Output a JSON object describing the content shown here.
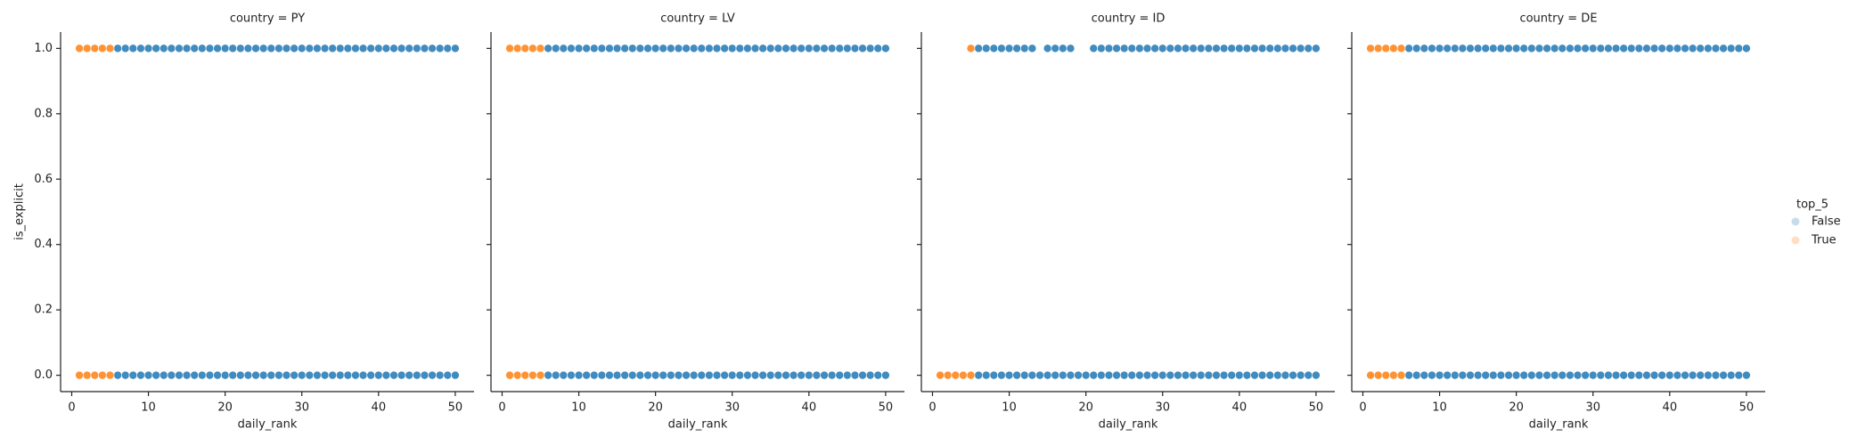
{
  "chart_data": [
    {
      "type": "scatter",
      "title": "country = PY",
      "x_label": "daily_rank",
      "y_label": "is_explicit",
      "legend_title": "top_5",
      "xlim": [
        -1.45,
        52.45
      ],
      "ylim": [
        -0.05,
        1.05
      ],
      "xticks": [
        0,
        10,
        20,
        30,
        40,
        50
      ],
      "yticks": [
        {
          "value": 0,
          "label": "0.0"
        },
        {
          "value": 0.2,
          "label": "0.2"
        },
        {
          "value": 0.4,
          "label": "0.4"
        },
        {
          "value": 0.6,
          "label": "0.6"
        },
        {
          "value": 0.8,
          "label": "0.8"
        },
        {
          "value": 1,
          "label": "1.0"
        }
      ],
      "series": [
        {
          "name": "False",
          "color": "#1f77b4",
          "x": [
            6,
            7,
            8,
            9,
            10,
            11,
            12,
            13,
            14,
            15,
            16,
            17,
            18,
            19,
            20,
            21,
            22,
            23,
            24,
            25,
            26,
            27,
            28,
            29,
            30,
            31,
            32,
            33,
            34,
            35,
            36,
            37,
            38,
            39,
            40,
            41,
            42,
            43,
            44,
            45,
            46,
            47,
            48,
            49,
            50,
            6,
            7,
            8,
            9,
            10,
            11,
            12,
            13,
            14,
            15,
            16,
            17,
            18,
            19,
            20,
            21,
            22,
            23,
            24,
            25,
            26,
            27,
            28,
            29,
            30,
            31,
            32,
            33,
            34,
            35,
            36,
            37,
            38,
            39,
            40,
            41,
            42,
            43,
            44,
            45,
            46,
            47,
            48,
            49,
            50
          ],
          "values": [
            1,
            1,
            1,
            1,
            1,
            1,
            1,
            1,
            1,
            1,
            1,
            1,
            1,
            1,
            1,
            1,
            1,
            1,
            1,
            1,
            1,
            1,
            1,
            1,
            1,
            1,
            1,
            1,
            1,
            1,
            1,
            1,
            1,
            1,
            1,
            1,
            1,
            1,
            1,
            1,
            1,
            1,
            1,
            1,
            1,
            0,
            0,
            0,
            0,
            0,
            0,
            0,
            0,
            0,
            0,
            0,
            0,
            0,
            0,
            0,
            0,
            0,
            0,
            0,
            0,
            0,
            0,
            0,
            0,
            0,
            0,
            0,
            0,
            0,
            0,
            0,
            0,
            0,
            0,
            0,
            0,
            0,
            0,
            0,
            0,
            0,
            0,
            0,
            0,
            0
          ]
        },
        {
          "name": "True",
          "color": "#ff7f0e",
          "x": [
            1,
            2,
            3,
            4,
            5,
            1,
            2,
            3,
            4,
            5
          ],
          "values": [
            1,
            1,
            1,
            1,
            1,
            0,
            0,
            0,
            0,
            0
          ]
        }
      ]
    },
    {
      "type": "scatter",
      "title": "country = LV",
      "x_label": "daily_rank",
      "xlim": [
        -1.45,
        52.45
      ],
      "ylim": [
        -0.05,
        1.05
      ],
      "xticks": [
        0,
        10,
        20,
        30,
        40,
        50
      ],
      "series": [
        {
          "name": "False",
          "color": "#1f77b4",
          "x": [
            6,
            7,
            8,
            9,
            10,
            11,
            12,
            13,
            14,
            15,
            16,
            17,
            18,
            19,
            20,
            21,
            22,
            23,
            24,
            25,
            26,
            27,
            28,
            29,
            30,
            31,
            32,
            33,
            34,
            35,
            36,
            37,
            38,
            39,
            40,
            41,
            42,
            43,
            44,
            45,
            46,
            47,
            48,
            49,
            50,
            6,
            7,
            8,
            9,
            10,
            11,
            12,
            13,
            14,
            15,
            16,
            17,
            18,
            19,
            20,
            21,
            22,
            23,
            24,
            25,
            26,
            27,
            28,
            29,
            30,
            31,
            32,
            33,
            34,
            35,
            36,
            37,
            38,
            39,
            40,
            41,
            42,
            43,
            44,
            45,
            46,
            47,
            48,
            49,
            50
          ],
          "values": [
            1,
            1,
            1,
            1,
            1,
            1,
            1,
            1,
            1,
            1,
            1,
            1,
            1,
            1,
            1,
            1,
            1,
            1,
            1,
            1,
            1,
            1,
            1,
            1,
            1,
            1,
            1,
            1,
            1,
            1,
            1,
            1,
            1,
            1,
            1,
            1,
            1,
            1,
            1,
            1,
            1,
            1,
            1,
            1,
            1,
            0,
            0,
            0,
            0,
            0,
            0,
            0,
            0,
            0,
            0,
            0,
            0,
            0,
            0,
            0,
            0,
            0,
            0,
            0,
            0,
            0,
            0,
            0,
            0,
            0,
            0,
            0,
            0,
            0,
            0,
            0,
            0,
            0,
            0,
            0,
            0,
            0,
            0,
            0,
            0,
            0,
            0,
            0,
            0,
            0
          ]
        },
        {
          "name": "True",
          "color": "#ff7f0e",
          "x": [
            1,
            2,
            3,
            4,
            5,
            1,
            2,
            3,
            4,
            5
          ],
          "values": [
            1,
            1,
            1,
            1,
            1,
            0,
            0,
            0,
            0,
            0
          ]
        }
      ]
    },
    {
      "type": "scatter",
      "title": "country = ID",
      "x_label": "daily_rank",
      "xlim": [
        -1.45,
        52.45
      ],
      "ylim": [
        -0.05,
        1.05
      ],
      "xticks": [
        0,
        10,
        20,
        30,
        40,
        50
      ],
      "series": [
        {
          "name": "False",
          "color": "#1f77b4",
          "x": [
            6,
            7,
            8,
            9,
            10,
            11,
            12,
            13,
            15,
            16,
            17,
            18,
            21,
            22,
            23,
            24,
            25,
            26,
            27,
            28,
            29,
            30,
            31,
            32,
            33,
            34,
            35,
            36,
            37,
            38,
            39,
            40,
            41,
            42,
            43,
            44,
            45,
            46,
            47,
            48,
            49,
            50,
            6,
            7,
            8,
            9,
            10,
            11,
            12,
            13,
            14,
            15,
            16,
            17,
            18,
            19,
            20,
            21,
            22,
            23,
            24,
            25,
            26,
            27,
            28,
            29,
            30,
            31,
            32,
            33,
            34,
            35,
            36,
            37,
            38,
            39,
            40,
            41,
            42,
            43,
            44,
            45,
            46,
            47,
            48,
            49,
            50
          ],
          "values": [
            1,
            1,
            1,
            1,
            1,
            1,
            1,
            1,
            1,
            1,
            1,
            1,
            1,
            1,
            1,
            1,
            1,
            1,
            1,
            1,
            1,
            1,
            1,
            1,
            1,
            1,
            1,
            1,
            1,
            1,
            1,
            1,
            1,
            1,
            1,
            1,
            1,
            1,
            1,
            1,
            1,
            1,
            0,
            0,
            0,
            0,
            0,
            0,
            0,
            0,
            0,
            0,
            0,
            0,
            0,
            0,
            0,
            0,
            0,
            0,
            0,
            0,
            0,
            0,
            0,
            0,
            0,
            0,
            0,
            0,
            0,
            0,
            0,
            0,
            0,
            0,
            0,
            0,
            0,
            0,
            0,
            0,
            0,
            0,
            0,
            0,
            0
          ]
        },
        {
          "name": "True",
          "color": "#ff7f0e",
          "x": [
            5,
            1,
            2,
            3,
            4,
            5
          ],
          "values": [
            1,
            0,
            0,
            0,
            0,
            0
          ]
        }
      ]
    },
    {
      "type": "scatter",
      "title": "country = DE",
      "x_label": "daily_rank",
      "xlim": [
        -1.45,
        52.45
      ],
      "ylim": [
        -0.05,
        1.05
      ],
      "xticks": [
        0,
        10,
        20,
        30,
        40,
        50
      ],
      "series": [
        {
          "name": "False",
          "color": "#1f77b4",
          "x": [
            6,
            7,
            8,
            9,
            10,
            11,
            12,
            13,
            14,
            15,
            16,
            17,
            18,
            19,
            20,
            21,
            22,
            23,
            24,
            25,
            26,
            27,
            28,
            29,
            30,
            31,
            32,
            33,
            34,
            35,
            36,
            37,
            38,
            39,
            40,
            41,
            42,
            43,
            44,
            45,
            46,
            47,
            48,
            49,
            50,
            6,
            7,
            8,
            9,
            10,
            11,
            12,
            13,
            14,
            15,
            16,
            17,
            18,
            19,
            20,
            21,
            22,
            23,
            24,
            25,
            26,
            27,
            28,
            29,
            30,
            31,
            32,
            33,
            34,
            35,
            36,
            37,
            38,
            39,
            40,
            41,
            42,
            43,
            44,
            45,
            46,
            47,
            48,
            49,
            50
          ],
          "values": [
            1,
            1,
            1,
            1,
            1,
            1,
            1,
            1,
            1,
            1,
            1,
            1,
            1,
            1,
            1,
            1,
            1,
            1,
            1,
            1,
            1,
            1,
            1,
            1,
            1,
            1,
            1,
            1,
            1,
            1,
            1,
            1,
            1,
            1,
            1,
            1,
            1,
            1,
            1,
            1,
            1,
            1,
            1,
            1,
            1,
            0,
            0,
            0,
            0,
            0,
            0,
            0,
            0,
            0,
            0,
            0,
            0,
            0,
            0,
            0,
            0,
            0,
            0,
            0,
            0,
            0,
            0,
            0,
            0,
            0,
            0,
            0,
            0,
            0,
            0,
            0,
            0,
            0,
            0,
            0,
            0,
            0,
            0,
            0,
            0,
            0,
            0,
            0,
            0,
            0
          ]
        },
        {
          "name": "True",
          "color": "#ff7f0e",
          "x": [
            1,
            2,
            3,
            4,
            5,
            1,
            2,
            3,
            4,
            5
          ],
          "values": [
            1,
            1,
            1,
            1,
            1,
            0,
            0,
            0,
            0,
            0
          ]
        }
      ]
    }
  ]
}
